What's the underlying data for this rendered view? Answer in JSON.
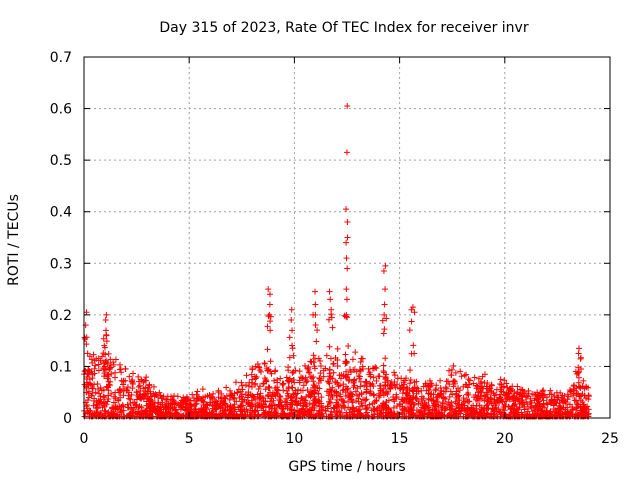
{
  "chart_data": {
    "type": "scatter",
    "title": "Day 315 of 2023, Rate Of TEC Index for receiver invr",
    "xlabel": "GPS time / hours",
    "ylabel": "ROTI / TECUs",
    "xlim": [
      0,
      25
    ],
    "ylim": [
      0,
      0.7
    ],
    "xticks": [
      "0",
      "5",
      "10",
      "15",
      "20",
      "25"
    ],
    "yticks": [
      "0",
      "0.1",
      "0.2",
      "0.3",
      "0.4",
      "0.5",
      "0.6",
      "0.7"
    ],
    "grid": true,
    "marker": "+",
    "color": "#ff0000",
    "envelope": {
      "x": [
        0,
        0.3,
        0.6,
        1.0,
        1.3,
        1.7,
        2.0,
        2.5,
        3.0,
        3.5,
        4.0,
        4.5,
        5.0,
        5.5,
        6.0,
        6.5,
        7.0,
        7.5,
        8.0,
        8.5,
        9.0,
        9.5,
        10.0,
        10.5,
        11.0,
        11.5,
        12.0,
        12.5,
        13.0,
        13.5,
        14.0,
        14.5,
        15.0,
        15.5,
        16.0,
        16.5,
        17.0,
        17.5,
        18.0,
        18.5,
        19.0,
        19.5,
        20.0,
        20.5,
        21.0,
        21.5,
        22.0,
        22.5,
        23.0,
        23.5,
        24.0
      ],
      "y": [
        0.12,
        0.11,
        0.12,
        0.13,
        0.12,
        0.1,
        0.09,
        0.08,
        0.07,
        0.05,
        0.04,
        0.04,
        0.04,
        0.05,
        0.05,
        0.05,
        0.06,
        0.07,
        0.09,
        0.11,
        0.09,
        0.1,
        0.09,
        0.1,
        0.12,
        0.11,
        0.12,
        0.13,
        0.12,
        0.1,
        0.11,
        0.09,
        0.08,
        0.07,
        0.07,
        0.07,
        0.08,
        0.09,
        0.09,
        0.08,
        0.08,
        0.07,
        0.07,
        0.06,
        0.06,
        0.05,
        0.05,
        0.05,
        0.05,
        0.09,
        0.05
      ]
    },
    "spikes": [
      {
        "x": 0.1,
        "values": [
          0.205,
          0.18
        ]
      },
      {
        "x": 1.05,
        "values": [
          0.2,
          0.19,
          0.17
        ]
      },
      {
        "x": 8.8,
        "values": [
          0.25,
          0.24,
          0.22,
          0.2
        ]
      },
      {
        "x": 9.85,
        "values": [
          0.21,
          0.19,
          0.17
        ]
      },
      {
        "x": 11.0,
        "values": [
          0.245,
          0.22,
          0.2
        ]
      },
      {
        "x": 11.7,
        "values": [
          0.245,
          0.23,
          0.21
        ]
      },
      {
        "x": 12.5,
        "values": [
          0.605,
          0.515,
          0.405,
          0.38,
          0.35,
          0.34,
          0.31,
          0.29,
          0.25,
          0.23,
          0.2
        ]
      },
      {
        "x": 14.3,
        "values": [
          0.295,
          0.285,
          0.25,
          0.22,
          0.2
        ]
      },
      {
        "x": 15.6,
        "values": [
          0.215,
          0.21
        ]
      },
      {
        "x": 23.5,
        "values": [
          0.135,
          0.125
        ]
      }
    ]
  }
}
